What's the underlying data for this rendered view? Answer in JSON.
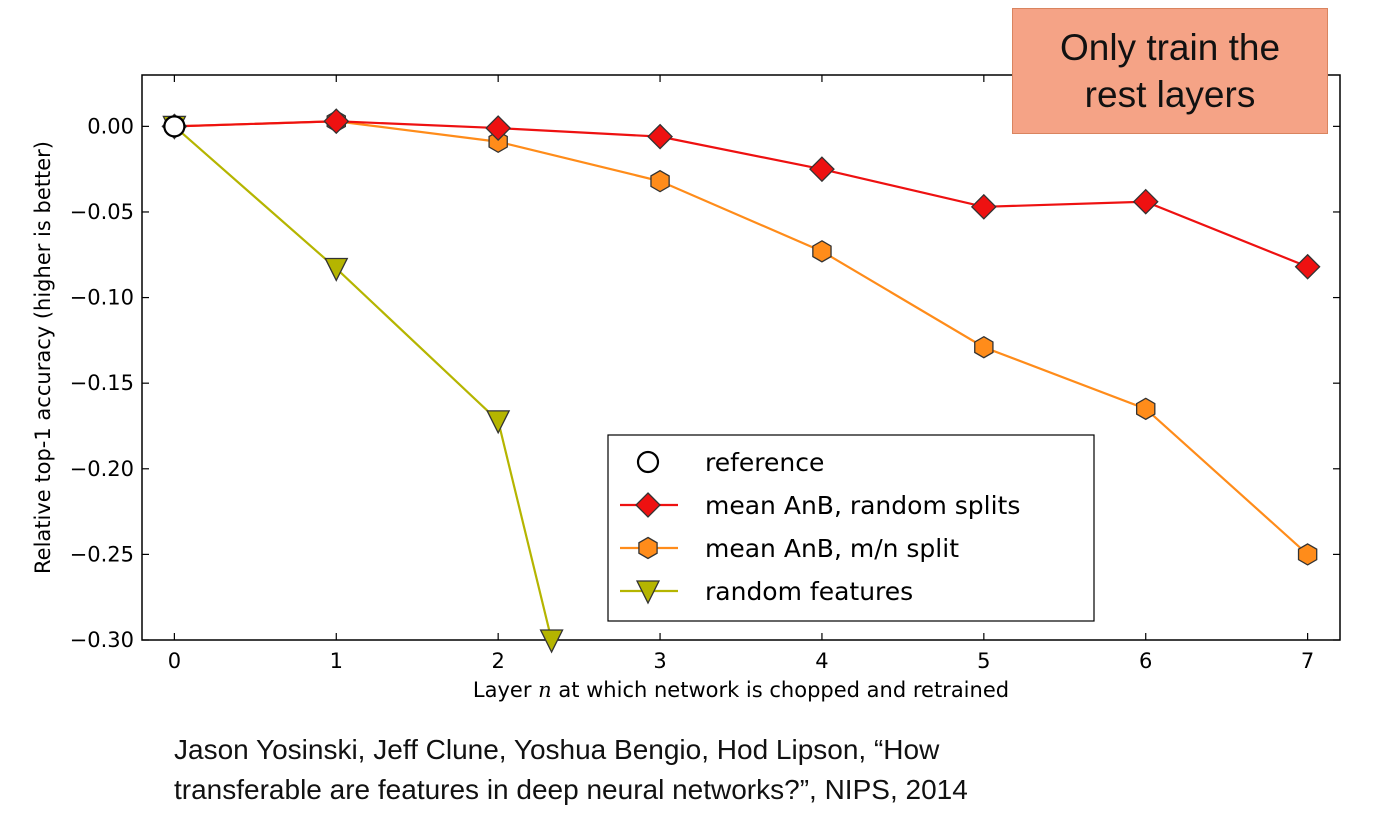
{
  "callout": {
    "line1": "Only train the",
    "line2": "rest layers"
  },
  "citation": {
    "line1": "Jason Yosinski, Jeff Clune, Yoshua Bengio, Hod Lipson, “How",
    "line2": "transferable are features in deep neural networks?”, NIPS, 2014"
  },
  "chart_data": {
    "type": "line",
    "title": "",
    "xlabel": "Layer n at which network is chopped and retrained",
    "xlabel_parts": [
      "Layer ",
      "n",
      " at which network is chopped and retrained"
    ],
    "ylabel": "Relative top-1 accuracy (higher is better)",
    "xlim": [
      -0.2,
      7.2
    ],
    "ylim": [
      -0.3,
      0.03
    ],
    "xticks": [
      0,
      1,
      2,
      3,
      4,
      5,
      6,
      7
    ],
    "xtick_labels": [
      "0",
      "1",
      "2",
      "3",
      "4",
      "5",
      "6",
      "7"
    ],
    "yticks": [
      0.0,
      -0.05,
      -0.1,
      -0.15,
      -0.2,
      -0.25,
      -0.3
    ],
    "ytick_labels": [
      "0.00",
      "−0.05",
      "−0.10",
      "−0.15",
      "−0.20",
      "−0.25",
      "−0.30"
    ],
    "grid": false,
    "legend_position": "lower-right",
    "series": [
      {
        "name": "reference",
        "marker": "circle",
        "line": false,
        "color": "#ffffff",
        "points": [
          [
            0,
            0.0
          ]
        ]
      },
      {
        "name": "mean AnB, random splits",
        "marker": "diamond",
        "line": true,
        "color": "#ee1111",
        "points": [
          [
            0,
            0.0
          ],
          [
            1,
            0.003
          ],
          [
            2,
            -0.001
          ],
          [
            3,
            -0.006
          ],
          [
            4,
            -0.025
          ],
          [
            5,
            -0.047
          ],
          [
            6,
            -0.044
          ],
          [
            7,
            -0.082
          ]
        ]
      },
      {
        "name": "mean AnB, m/n split",
        "marker": "hexagon",
        "line": true,
        "color": "#ff8c1a",
        "points": [
          [
            0,
            0.0
          ],
          [
            1,
            0.003
          ],
          [
            2,
            -0.009
          ],
          [
            3,
            -0.032
          ],
          [
            4,
            -0.073
          ],
          [
            5,
            -0.129
          ],
          [
            6,
            -0.165
          ],
          [
            7,
            -0.25
          ]
        ]
      },
      {
        "name": "random features",
        "marker": "triangle-down",
        "line": true,
        "color": "#b5b500",
        "points": [
          [
            0,
            0.0
          ],
          [
            1,
            -0.083
          ],
          [
            2,
            -0.172
          ],
          [
            2.33,
            -0.3
          ]
        ]
      }
    ]
  }
}
